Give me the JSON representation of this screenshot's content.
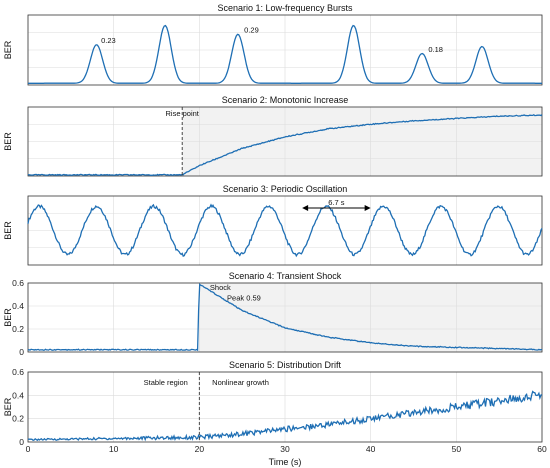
{
  "figure": {
    "xlabel": "Time (s)"
  },
  "chart_data": [
    {
      "type": "line",
      "title": "Scenario 1: Low-frequency Bursts",
      "ylabel": "BER",
      "xlim": [
        0,
        60
      ],
      "ylim": [
        0,
        0.4
      ],
      "xticks": [
        0,
        10,
        20,
        30,
        40,
        50,
        60
      ],
      "yticks": [],
      "grid": true,
      "series": [
        {
          "x": [
            0,
            6.5,
            8,
            9.5,
            14,
            16,
            18,
            22,
            24.5,
            27,
            36,
            38,
            40,
            44.5,
            46,
            47.5,
            51.5,
            53,
            54.5,
            60
          ],
          "y": [
            0.01,
            0.01,
            0.23,
            0.01,
            0.01,
            0.34,
            0.01,
            0.01,
            0.29,
            0.01,
            0.01,
            0.34,
            0.01,
            0.01,
            0.18,
            0.01,
            0.01,
            0.22,
            0.01,
            0.01
          ]
        }
      ],
      "annotations": [
        {
          "text": "0.23",
          "x": 8.3,
          "y": 0.24
        },
        {
          "text": "0.29",
          "x": 25,
          "y": 0.3
        },
        {
          "text": "0.18",
          "x": 46.5,
          "y": 0.19
        }
      ],
      "color": "#1f6fb4"
    },
    {
      "type": "line",
      "title": "Scenario 2: Monotonic Increase",
      "ylabel": "BER",
      "xlim": [
        0,
        60
      ],
      "ylim": [
        0,
        0.6
      ],
      "xticks": [
        0,
        10,
        20,
        30,
        40,
        50,
        60
      ],
      "yticks": [],
      "grid": true,
      "series": [
        {
          "x": [
            0,
            10,
            18,
            20,
            25,
            30,
            35,
            40,
            45,
            50,
            55,
            60
          ],
          "y": [
            0.01,
            0.01,
            0.01,
            0.09,
            0.24,
            0.34,
            0.41,
            0.45,
            0.48,
            0.5,
            0.52,
            0.53
          ]
        }
      ],
      "vline": {
        "x": 18,
        "label": "Rise point"
      },
      "shaded_from": 18,
      "color": "#1f6fb4"
    },
    {
      "type": "line",
      "title": "Scenario 3: Periodic Oscillation",
      "ylabel": "BER",
      "xlim": [
        0,
        60
      ],
      "ylim": [
        0,
        0.4
      ],
      "xticks": [
        0,
        10,
        20,
        30,
        40,
        50,
        60
      ],
      "yticks": [],
      "grid": true,
      "series": [
        {
          "period": 6.7,
          "mean": 0.2,
          "amplitude": 0.14,
          "first_peak_x": 8
        }
      ],
      "period_marker": {
        "x1": 32,
        "x2": 40,
        "label": "6.7 s"
      },
      "color": "#1f6fb4"
    },
    {
      "type": "line",
      "title": "Scenario 4: Transient Shock",
      "ylabel": "BER",
      "xlim": [
        0,
        60
      ],
      "ylim": [
        0,
        0.6
      ],
      "xticks": [
        0,
        10,
        20,
        30,
        40,
        50,
        60
      ],
      "yticks": [
        0,
        0.2,
        0.4,
        0.6
      ],
      "ytick_labels": [
        "0",
        "0.2",
        "0.4",
        "0.6"
      ],
      "grid": true,
      "series": [
        {
          "x": [
            0,
            10,
            19.8,
            20,
            25,
            30,
            35,
            40,
            45,
            50,
            55,
            60
          ],
          "y": [
            0.02,
            0.02,
            0.02,
            0.59,
            0.36,
            0.21,
            0.13,
            0.08,
            0.05,
            0.04,
            0.03,
            0.02
          ]
        }
      ],
      "shaded_from": 20,
      "annotations": [
        {
          "text": "Shock",
          "x": 21,
          "y": 0.54
        },
        {
          "text": "Peak 0.59",
          "x": 23,
          "y": 0.45
        }
      ],
      "color": "#1f6fb4"
    },
    {
      "type": "line",
      "title": "Scenario 5: Distribution Drift",
      "ylabel": "BER",
      "xlim": [
        0,
        60
      ],
      "ylim": [
        0,
        0.6
      ],
      "xticks": [
        0,
        10,
        20,
        30,
        40,
        50,
        60
      ],
      "yticks": [
        0,
        0.2,
        0.4,
        0.6
      ],
      "ytick_labels": [
        "0",
        "0.2",
        "0.4",
        "0.6"
      ],
      "xtick_labels": [
        "0",
        "10",
        "20",
        "30",
        "40",
        "50",
        "60"
      ],
      "grid": true,
      "series": [
        {
          "x": [
            0,
            10,
            20,
            25,
            30,
            35,
            40,
            45,
            50,
            55,
            60
          ],
          "y": [
            0.02,
            0.03,
            0.04,
            0.07,
            0.11,
            0.15,
            0.2,
            0.25,
            0.3,
            0.35,
            0.41
          ]
        }
      ],
      "vline": {
        "x": 20
      },
      "region_labels": [
        {
          "text": "Stable region",
          "x": 13.5,
          "y": 0.49
        },
        {
          "text": "Nonlinear growth",
          "x": 21.5,
          "y": 0.49
        }
      ],
      "color": "#1f6fb4"
    }
  ]
}
